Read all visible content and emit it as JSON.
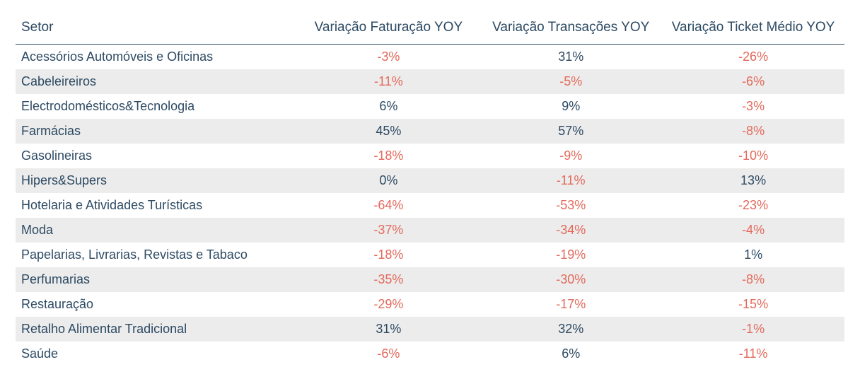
{
  "table": {
    "columns": [
      {
        "key": "setor",
        "label": "Setor",
        "align": "left"
      },
      {
        "key": "faturacao",
        "label": "Variação Faturação YOY",
        "align": "center"
      },
      {
        "key": "transacoes",
        "label": "Variação Transações YOY",
        "align": "center"
      },
      {
        "key": "ticket",
        "label": "Variação Ticket Médio YOY",
        "align": "center"
      }
    ],
    "rows": [
      {
        "setor": "Acessórios Automóveis e Oficinas",
        "faturacao": -3,
        "transacoes": 31,
        "ticket": -26
      },
      {
        "setor": "Cabeleireiros",
        "faturacao": -11,
        "transacoes": -5,
        "ticket": -6
      },
      {
        "setor": "Electrodomésticos&Tecnologia",
        "faturacao": 6,
        "transacoes": 9,
        "ticket": -3
      },
      {
        "setor": "Farmácias",
        "faturacao": 45,
        "transacoes": 57,
        "ticket": -8
      },
      {
        "setor": "Gasolineiras",
        "faturacao": -18,
        "transacoes": -9,
        "ticket": -10
      },
      {
        "setor": "Hipers&Supers",
        "faturacao": 0,
        "transacoes": -11,
        "ticket": 13
      },
      {
        "setor": "Hotelaria e Atividades Turísticas",
        "faturacao": -64,
        "transacoes": -53,
        "ticket": -23
      },
      {
        "setor": "Moda",
        "faturacao": -37,
        "transacoes": -34,
        "ticket": -4
      },
      {
        "setor": "Papelarias, Livrarias, Revistas e Tabaco",
        "faturacao": -18,
        "transacoes": -19,
        "ticket": 1
      },
      {
        "setor": "Perfumarias",
        "faturacao": -35,
        "transacoes": -30,
        "ticket": -8
      },
      {
        "setor": "Restauração",
        "faturacao": -29,
        "transacoes": -17,
        "ticket": -15
      },
      {
        "setor": "Retalho Alimentar Tradicional",
        "faturacao": 31,
        "transacoes": 32,
        "ticket": -1
      },
      {
        "setor": "Saúde",
        "faturacao": -6,
        "transacoes": 6,
        "ticket": -11
      }
    ],
    "colors": {
      "text": "#2d4a63",
      "negative": "#e36a5c",
      "row_alt_bg": "#ececec",
      "header_border": "#2d4a63",
      "background": "#ffffff"
    },
    "font_family": "Segoe UI",
    "header_fontsize_pt": 14,
    "body_fontsize_pt": 13,
    "column_widths_pct": [
      34,
      22,
      22,
      22
    ],
    "value_suffix": "%"
  }
}
